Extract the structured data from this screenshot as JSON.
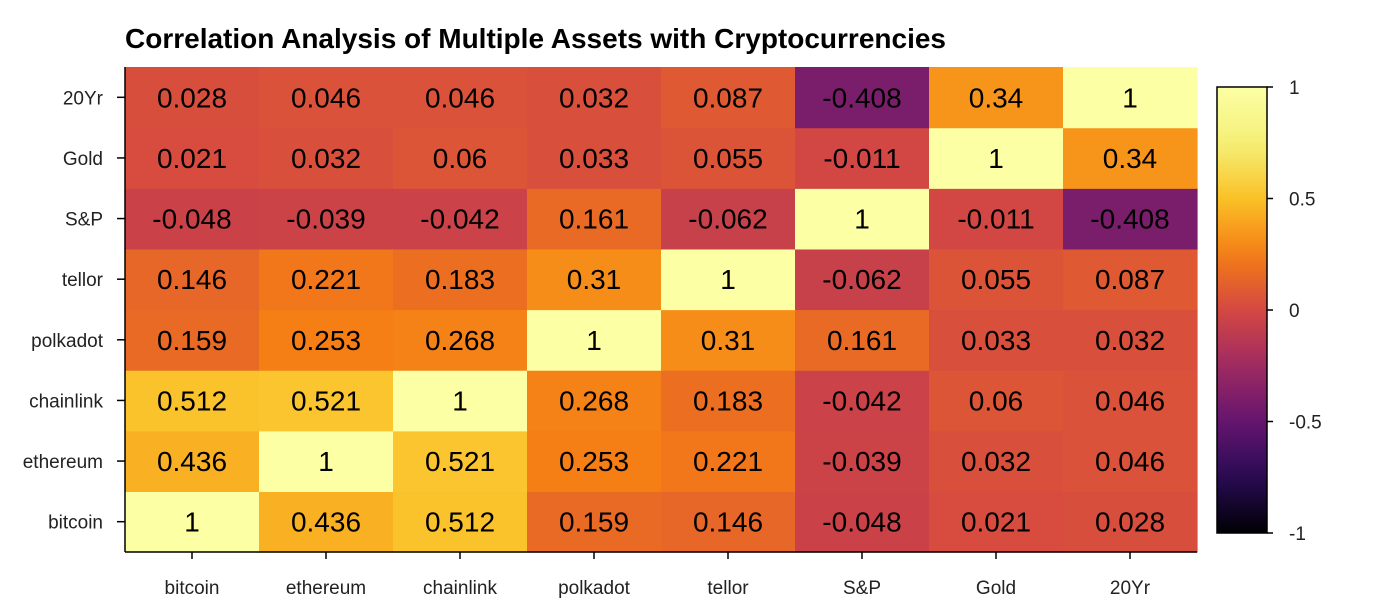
{
  "chart_data": {
    "type": "heatmap",
    "title": "Correlation Analysis of Multiple Assets with Cryptocurrencies",
    "x_categories": [
      "bitcoin",
      "ethereum",
      "chainlink",
      "polkadot",
      "tellor",
      "S&P",
      "Gold",
      "20Yr"
    ],
    "y_categories": [
      "bitcoin",
      "ethereum",
      "chainlink",
      "polkadot",
      "tellor",
      "S&P",
      "Gold",
      "20Yr"
    ],
    "values": [
      [
        1,
        0.436,
        0.512,
        0.159,
        0.146,
        -0.048,
        0.021,
        0.028
      ],
      [
        0.436,
        1,
        0.521,
        0.253,
        0.221,
        -0.039,
        0.032,
        0.046
      ],
      [
        0.512,
        0.521,
        1,
        0.268,
        0.183,
        -0.042,
        0.06,
        0.046
      ],
      [
        0.159,
        0.253,
        0.268,
        1,
        0.31,
        0.161,
        0.033,
        0.032
      ],
      [
        0.146,
        0.221,
        0.183,
        0.31,
        1,
        -0.062,
        0.055,
        0.087
      ],
      [
        -0.048,
        -0.039,
        -0.042,
        0.161,
        -0.062,
        1,
        -0.011,
        -0.408
      ],
      [
        0.021,
        0.032,
        0.06,
        0.033,
        0.055,
        -0.011,
        1,
        0.34
      ],
      [
        0.028,
        0.046,
        0.046,
        0.032,
        0.087,
        -0.408,
        0.34,
        1
      ]
    ],
    "value_labels": [
      [
        "1",
        "0.436",
        "0.512",
        "0.159",
        "0.146",
        "-0.048",
        "0.021",
        "0.028"
      ],
      [
        "0.436",
        "1",
        "0.521",
        "0.253",
        "0.221",
        "-0.039",
        "0.032",
        "0.046"
      ],
      [
        "0.512",
        "0.521",
        "1",
        "0.268",
        "0.183",
        "-0.042",
        "0.06",
        "0.046"
      ],
      [
        "0.159",
        "0.253",
        "0.268",
        "1",
        "0.31",
        "0.161",
        "0.033",
        "0.032"
      ],
      [
        "0.146",
        "0.221",
        "0.183",
        "0.31",
        "1",
        "-0.062",
        "0.055",
        "0.087"
      ],
      [
        "-0.048",
        "-0.039",
        "-0.042",
        "0.161",
        "-0.062",
        "1",
        "-0.011",
        "-0.408"
      ],
      [
        "0.021",
        "0.032",
        "0.06",
        "0.033",
        "0.055",
        "-0.011",
        "1",
        "0.34"
      ],
      [
        "0.028",
        "0.046",
        "0.046",
        "0.032",
        "0.087",
        "-0.408",
        "0.34",
        "1"
      ]
    ],
    "colorscale": "inferno",
    "zmin": -1,
    "zmax": 1,
    "colorbar_ticks": [
      1,
      0.5,
      0,
      -0.5,
      -1
    ],
    "colorbar_tick_labels": [
      "1",
      "0.5",
      "0",
      "-0.5",
      "-1"
    ],
    "xlabel": "",
    "ylabel": "",
    "legend": "colorbar-right"
  }
}
